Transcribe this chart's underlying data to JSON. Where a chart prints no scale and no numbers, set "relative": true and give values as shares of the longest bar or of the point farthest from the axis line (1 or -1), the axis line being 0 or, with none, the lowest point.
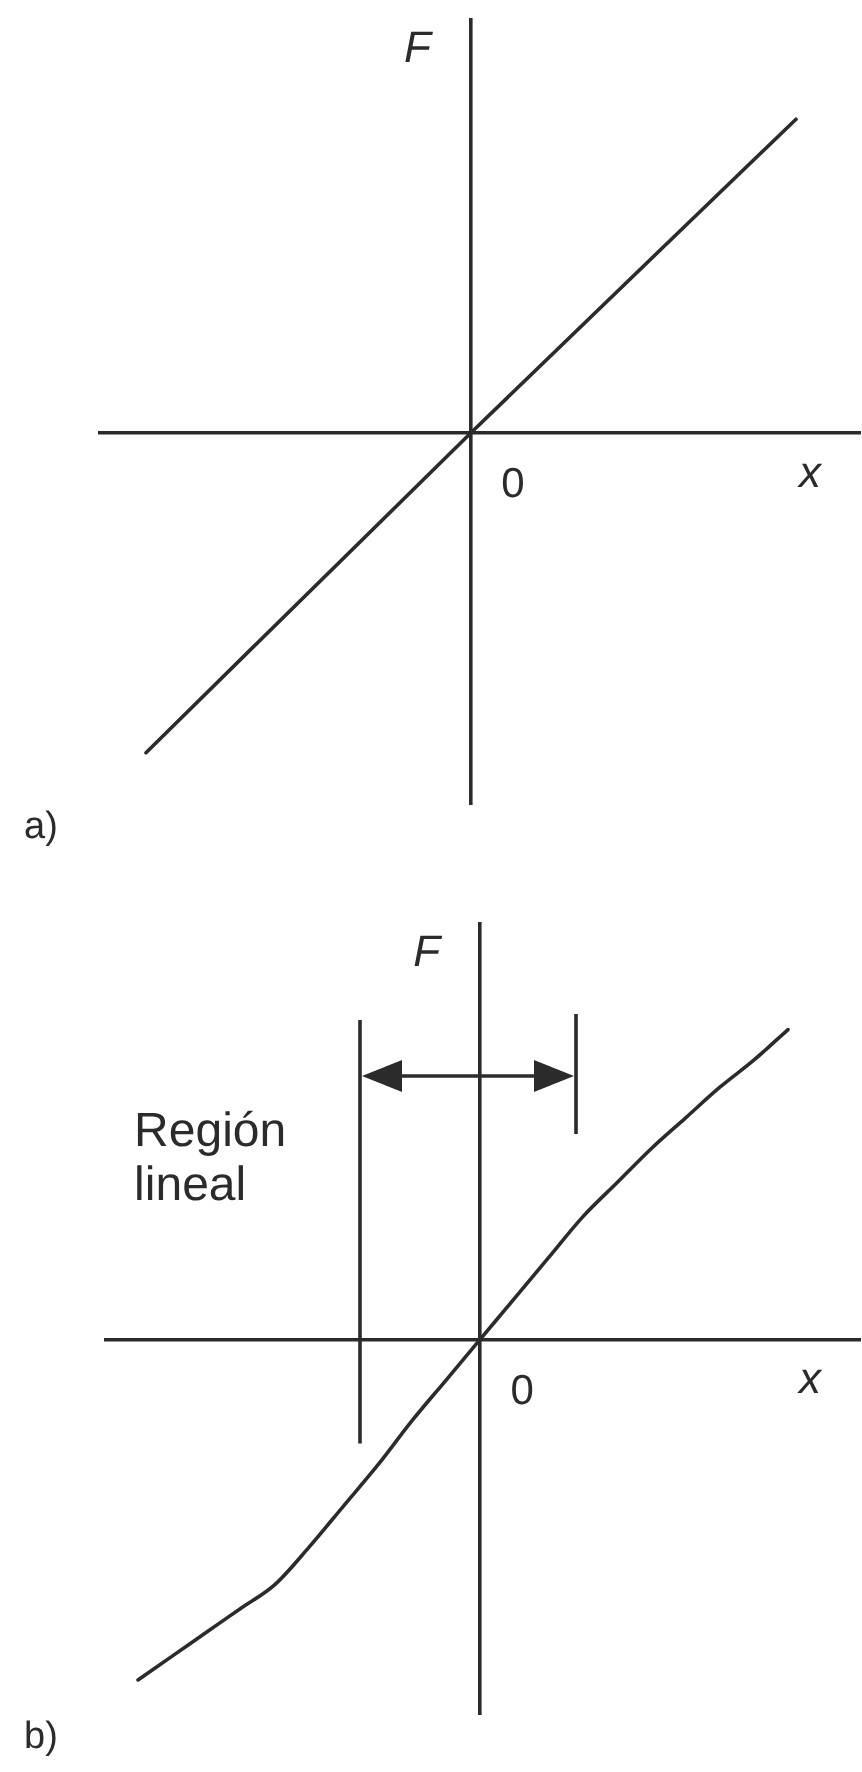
{
  "chart_data": [
    {
      "type": "line",
      "title": "a)",
      "xlabel": "x",
      "ylabel": "F",
      "relative": true,
      "marker": "none",
      "categories": [
        null,
        null,
        null
      ],
      "series": [
        {
          "color": "#2b2b2b",
          "values": [
            -1,
            0,
            0.98
          ]
        }
      ],
      "annotations": [
        "0"
      ]
    },
    {
      "type": "line",
      "title": "b)",
      "xlabel": "x",
      "ylabel": "F",
      "relative": true,
      "marker": "none",
      "categories": [
        null,
        null,
        null,
        null,
        null,
        null,
        null,
        null,
        null,
        null,
        null,
        null,
        null,
        null,
        null,
        null,
        null,
        null,
        null,
        null
      ],
      "series": [
        {
          "color": "#2b2b2b",
          "values": [
            -1,
            -0.93,
            -0.86,
            -0.79,
            -0.72,
            -0.61,
            -0.49,
            -0.37,
            -0.24,
            -0.12,
            0,
            0.12,
            0.24,
            0.36,
            0.46,
            0.56,
            0.65,
            0.74,
            0.82,
            0.91
          ]
        }
      ],
      "annotations": [
        "0",
        "Región lineal"
      ]
    }
  ]
}
